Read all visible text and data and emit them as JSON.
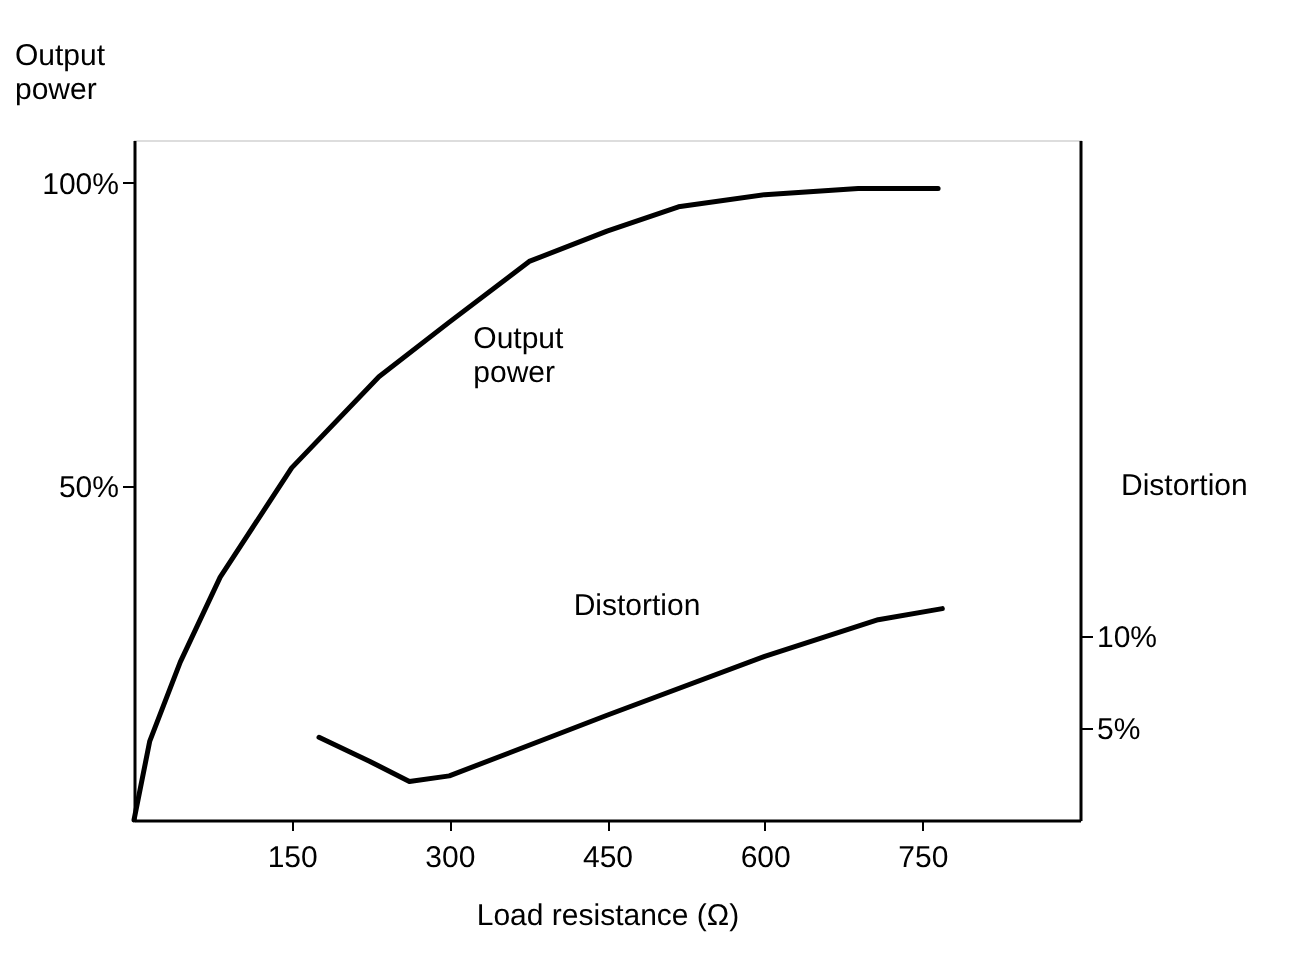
{
  "chart_data": {
    "type": "line",
    "xlabel": "Load resistance (Ω)",
    "ylabel": "Output power",
    "y2label": "Distortion",
    "xlim": [
      0,
      900
    ],
    "xticks": [
      150,
      300,
      450,
      600,
      750
    ],
    "ylim": [
      -5,
      107
    ],
    "yticks": [
      {
        "value": 50,
        "label": "50%"
      },
      {
        "value": 100,
        "label": "100%"
      }
    ],
    "y2lim": [
      0,
      37
    ],
    "y2ticks": [
      {
        "value": 5,
        "label": "5%"
      },
      {
        "value": 10,
        "label": "10%"
      }
    ],
    "grid": false,
    "marker": "none",
    "line_style": "solid",
    "series": [
      {
        "name": "Output power",
        "color": "#000000",
        "x": [
          0,
          15,
          44,
          82,
          150,
          233,
          300,
          376,
          450,
          518,
          600,
          689,
          765
        ],
        "values": [
          -5,
          8,
          21,
          35,
          53,
          68,
          77,
          87,
          92,
          96,
          98,
          99,
          99
        ]
      },
      {
        "name": "Distortion",
        "color": "#000000",
        "axis": "y2",
        "x": [
          176,
          224,
          262,
          300,
          450,
          600,
          708,
          769
        ],
        "values": [
          4.5,
          3.2,
          2.1,
          2.4,
          5.7,
          8.9,
          10.9,
          11.5
        ]
      }
    ]
  }
}
